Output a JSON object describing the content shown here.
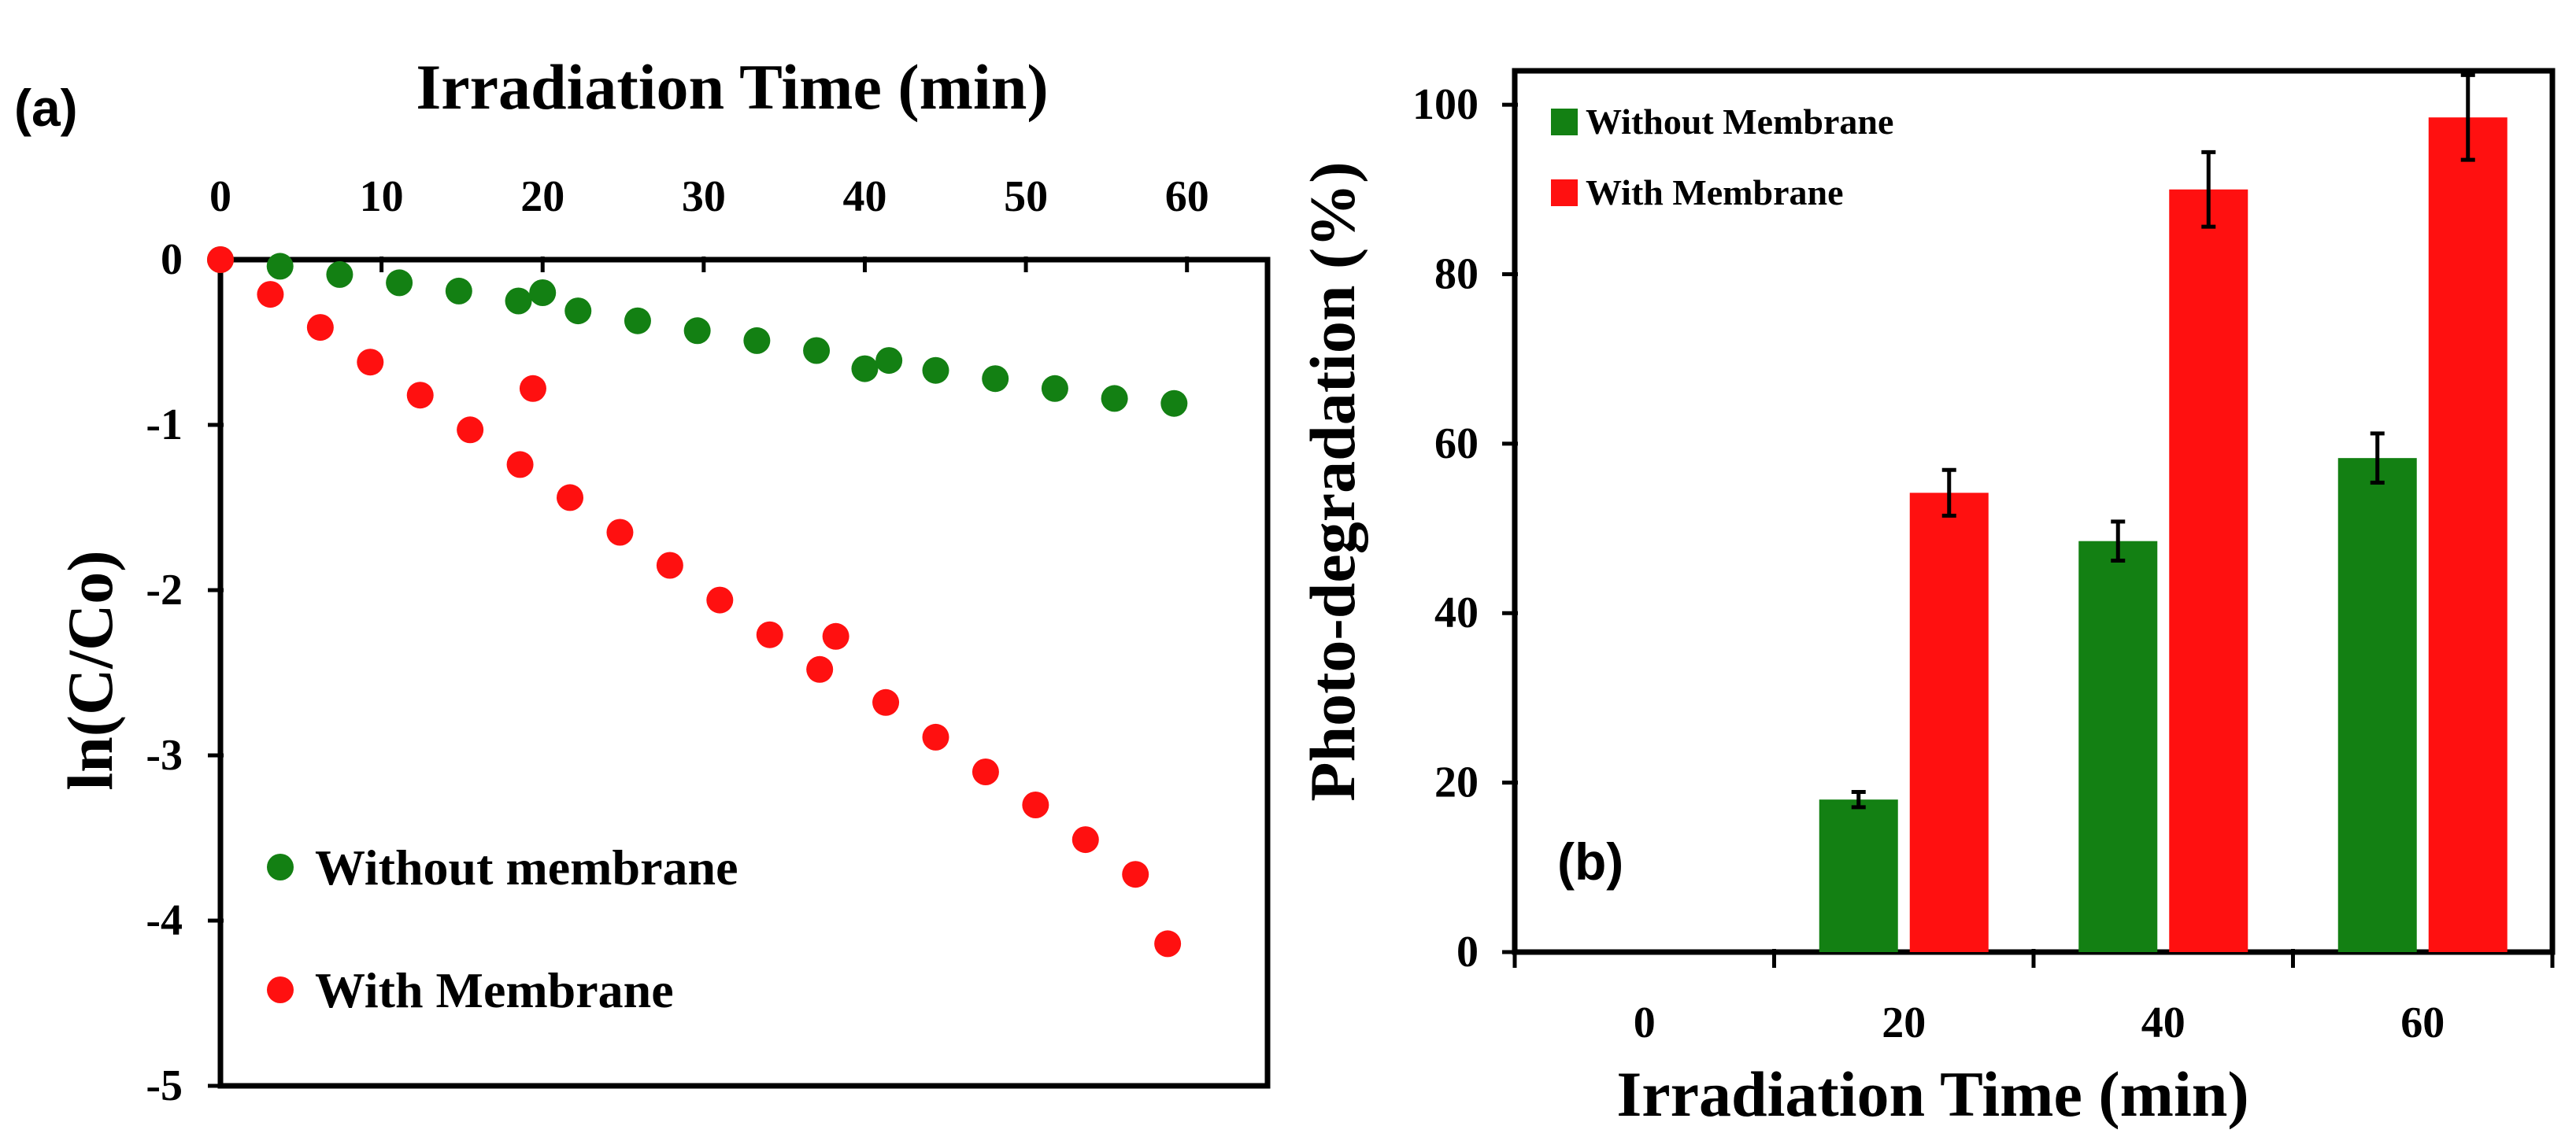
{
  "colors": {
    "without": "#138013",
    "with": "#ff1010",
    "axis": "#000000"
  },
  "chart_data": [
    {
      "panel_label": "(a)",
      "type": "scatter",
      "title": "Irradiation Time (min)",
      "xlabel": "Irradiation Time (min)",
      "ylabel": "ln(C/Co)",
      "xaxis_position": "top",
      "xlim": [
        0,
        65
      ],
      "ylim": [
        -5,
        0
      ],
      "xticks": [
        "0",
        "10",
        "20",
        "30",
        "40",
        "50",
        "60"
      ],
      "yticks": [
        "0",
        "-1",
        "-2",
        "-3",
        "-4",
        "-5"
      ],
      "legend_position": "bottom-left",
      "series": [
        {
          "name": "Without membrane",
          "x": [
            0,
            3.7,
            7.4,
            11.1,
            14.8,
            18.5,
            20,
            22.2,
            25.9,
            29.6,
            33.3,
            37,
            40,
            41.5,
            44.4,
            48.1,
            51.8,
            55.5,
            59.2
          ],
          "y": [
            0,
            -0.04,
            -0.09,
            -0.14,
            -0.19,
            -0.25,
            -0.2,
            -0.31,
            -0.37,
            -0.43,
            -0.49,
            -0.55,
            -0.66,
            -0.61,
            -0.67,
            -0.72,
            -0.78,
            -0.84,
            -0.87
          ]
        },
        {
          "name": "With Membrane",
          "x": [
            0,
            3.1,
            6.2,
            9.3,
            12.4,
            15.5,
            18.6,
            19.4,
            21.7,
            24.8,
            27.9,
            31,
            34.1,
            37.2,
            38.2,
            41.3,
            44.4,
            47.5,
            50.6,
            53.7,
            56.8,
            58.8
          ],
          "y": [
            0,
            -0.21,
            -0.41,
            -0.62,
            -0.82,
            -1.03,
            -1.24,
            -0.78,
            -1.44,
            -1.65,
            -1.85,
            -2.06,
            -2.27,
            -2.48,
            -2.28,
            -2.68,
            -2.89,
            -3.1,
            -3.3,
            -3.51,
            -3.72,
            -4.14
          ]
        }
      ]
    },
    {
      "panel_label": "(b)",
      "type": "bar",
      "xlabel": "Irradiation Time (min)",
      "ylabel": "Photo-degradation  (%)",
      "categories": [
        "0",
        "20",
        "40",
        "60"
      ],
      "ylim": [
        0,
        100
      ],
      "yticks": [
        "0",
        "20",
        "40",
        "60",
        "80",
        "100"
      ],
      "legend_position": "top-left",
      "series": [
        {
          "name": "Without Membrane",
          "values": [
            0,
            18,
            48.5,
            58.3
          ],
          "errors": [
            0,
            0.9,
            2.3,
            2.9
          ]
        },
        {
          "name": "With Membrane",
          "values": [
            0,
            54.2,
            90,
            98.5
          ],
          "errors": [
            0,
            2.7,
            4.4,
            5.0
          ]
        }
      ]
    }
  ]
}
